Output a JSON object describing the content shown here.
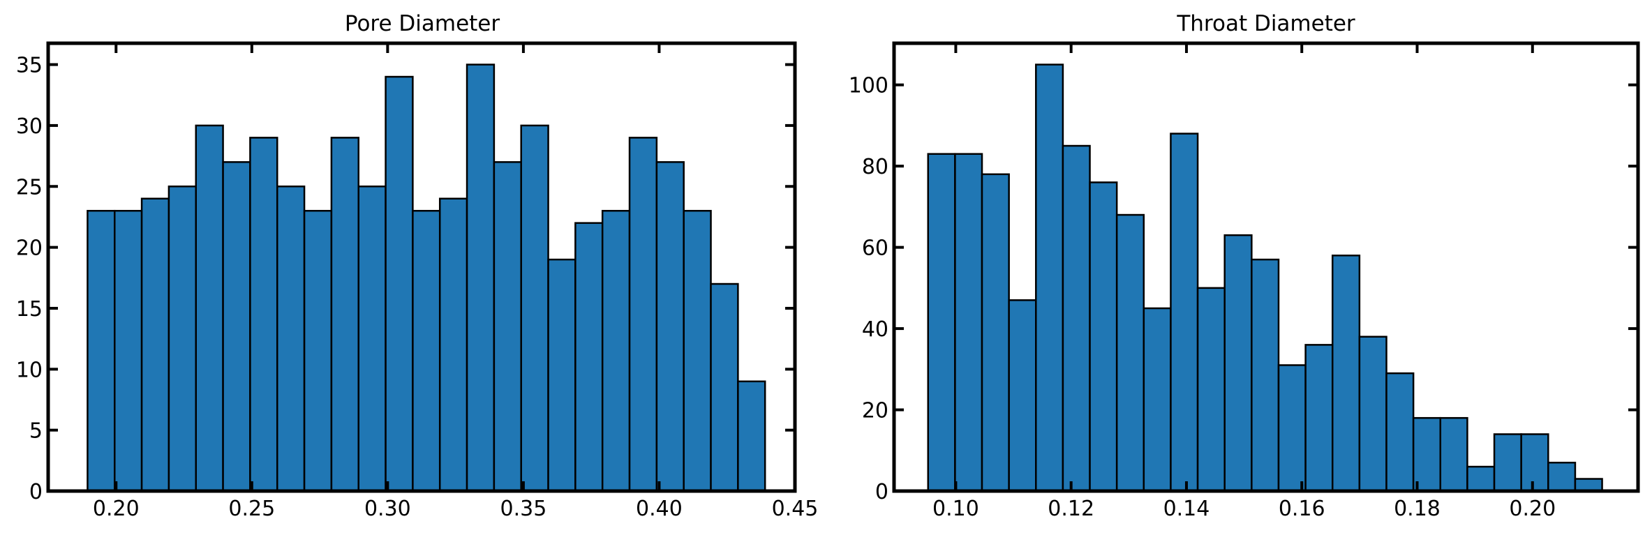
{
  "colors": {
    "bar_fill": "#2077b4",
    "bar_edge": "#000000",
    "axes": "#000000",
    "background": "#ffffff"
  },
  "chart_data": [
    {
      "type": "bar",
      "title": "Pore Diameter",
      "xlabel": "",
      "ylabel": "",
      "grid": false,
      "xlim": [
        0.175,
        0.45
      ],
      "ylim": [
        0,
        36.75
      ],
      "xticks": [
        0.2,
        0.25,
        0.3,
        0.35,
        0.4,
        0.45
      ],
      "xtick_labels": [
        "0.20",
        "0.25",
        "0.30",
        "0.35",
        "0.40",
        "0.45"
      ],
      "yticks": [
        0,
        5,
        10,
        15,
        20,
        25,
        30,
        35
      ],
      "ytick_labels": [
        "0",
        "5",
        "10",
        "15",
        "20",
        "25",
        "30",
        "35"
      ],
      "bins": {
        "start": 0.1895,
        "width": 0.00998
      },
      "values": [
        23,
        23,
        24,
        25,
        30,
        27,
        29,
        25,
        23,
        29,
        25,
        34,
        23,
        24,
        35,
        27,
        30,
        19,
        22,
        23,
        29,
        27,
        23,
        17,
        9
      ]
    },
    {
      "type": "bar",
      "title": "Throat Diameter",
      "xlabel": "",
      "ylabel": "",
      "grid": false,
      "xlim": [
        0.0893,
        0.2183
      ],
      "ylim": [
        0,
        110.25
      ],
      "xticks": [
        0.1,
        0.12,
        0.14,
        0.16,
        0.18,
        0.2
      ],
      "xtick_labels": [
        "0.10",
        "0.12",
        "0.14",
        "0.16",
        "0.18",
        "0.20"
      ],
      "yticks": [
        0,
        20,
        40,
        60,
        80,
        100
      ],
      "ytick_labels": [
        "0",
        "20",
        "40",
        "60",
        "80",
        "100"
      ],
      "bins": {
        "start": 0.0952,
        "width": 0.004675
      },
      "values": [
        83,
        83,
        78,
        47,
        105,
        85,
        76,
        68,
        45,
        88,
        50,
        63,
        57,
        31,
        36,
        58,
        38,
        29,
        18,
        18,
        6,
        14,
        14,
        7,
        3
      ]
    }
  ]
}
